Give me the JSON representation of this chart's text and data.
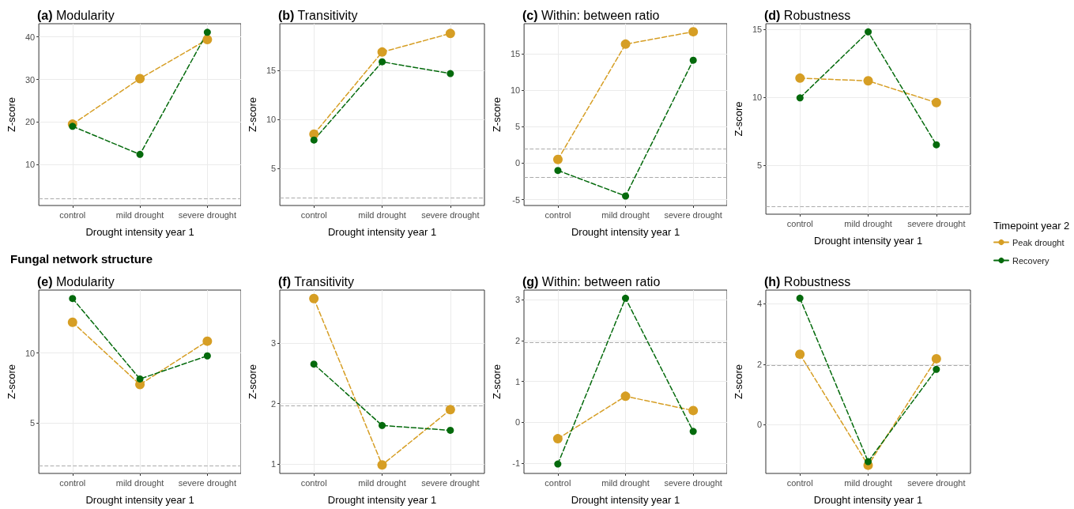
{
  "chart_data": [
    {
      "type": "line",
      "title": "(a) Modularity",
      "xlabel": "Drought intensity year 1",
      "ylabel": "Z-score",
      "categories": [
        "control",
        "mild drought",
        "severe drought"
      ],
      "ylim": [
        0.4,
        43.1
      ],
      "yticks": [
        10,
        20,
        30,
        40
      ],
      "grid": true,
      "marker": "circle",
      "line_style": "dashed",
      "ref_lines": [
        {
          "axis": "y",
          "value": 1.96,
          "color": "#aaaaaa",
          "line_style": "dashed"
        }
      ],
      "series": [
        {
          "color": "#d69e24",
          "values": [
            19.5,
            30.2,
            39.4
          ]
        },
        {
          "color": "#046a0c",
          "values": [
            19.0,
            12.4,
            41.1
          ]
        }
      ]
    },
    {
      "type": "line",
      "title": "(b) Transitivity",
      "xlabel": "Drought intensity year 1",
      "ylabel": "Z-score",
      "categories": [
        "control",
        "mild drought",
        "severe drought"
      ],
      "ylim": [
        1.2,
        19.8
      ],
      "yticks": [
        5,
        10,
        15
      ],
      "grid": true,
      "marker": "circle",
      "line_style": "dashed",
      "ref_lines": [
        {
          "axis": "y",
          "value": 1.96,
          "color": "#aaaaaa",
          "line_style": "dashed"
        }
      ],
      "series": [
        {
          "color": "#d69e24",
          "values": [
            8.5,
            16.9,
            18.8
          ]
        },
        {
          "color": "#046a0c",
          "values": [
            7.9,
            15.9,
            14.7
          ]
        }
      ]
    },
    {
      "type": "line",
      "title": "(c) Within: between ratio",
      "xlabel": "Drought intensity year 1",
      "ylabel": "Z-score",
      "categories": [
        "control",
        "mild drought",
        "severe drought"
      ],
      "ylim": [
        -5.8,
        19.1
      ],
      "yticks": [
        -5,
        0,
        5,
        10,
        15
      ],
      "grid": true,
      "marker": "circle",
      "line_style": "dashed",
      "ref_lines": [
        {
          "axis": "y",
          "value": 1.96,
          "color": "#aaaaaa",
          "line_style": "dashed"
        },
        {
          "axis": "y",
          "value": -1.96,
          "color": "#aaaaaa",
          "line_style": "dashed"
        }
      ],
      "series": [
        {
          "color": "#d69e24",
          "values": [
            0.5,
            16.3,
            18.0
          ]
        },
        {
          "color": "#046a0c",
          "values": [
            -1.0,
            -4.5,
            14.1
          ]
        }
      ]
    },
    {
      "type": "line",
      "title": "(d) Robustness",
      "xlabel": "Drought intensity year 1",
      "ylabel": "Z-score",
      "categories": [
        "control",
        "mild drought",
        "severe drought"
      ],
      "ylim": [
        1.4,
        15.4
      ],
      "yticks": [
        5,
        10,
        15
      ],
      "grid": true,
      "marker": "circle",
      "line_style": "dashed",
      "legend": "right",
      "legend_title": "Timepoint year 2",
      "ref_lines": [
        {
          "axis": "y",
          "value": 1.96,
          "color": "#aaaaaa",
          "line_style": "dashed"
        }
      ],
      "series": [
        {
          "name": "Peak drought",
          "color": "#d69e24",
          "values": [
            11.4,
            11.2,
            9.6
          ]
        },
        {
          "name": "Recovery",
          "color": "#046a0c",
          "values": [
            9.95,
            14.8,
            6.5
          ]
        }
      ]
    },
    {
      "type": "line",
      "subtitle": "Fungal network structure",
      "title": "(e) Modularity",
      "xlabel": "Drought intensity year 1",
      "ylabel": "Z-score",
      "categories": [
        "control",
        "mild drought",
        "severe drought"
      ],
      "ylim": [
        1.4,
        14.5
      ],
      "yticks": [
        5,
        10
      ],
      "grid": true,
      "marker": "circle",
      "line_style": "dashed",
      "ref_lines": [
        {
          "axis": "y",
          "value": 1.96,
          "color": "#aaaaaa",
          "line_style": "dashed"
        }
      ],
      "series": [
        {
          "color": "#d69e24",
          "values": [
            12.2,
            7.75,
            10.85
          ]
        },
        {
          "color": "#046a0c",
          "values": [
            13.9,
            8.15,
            9.8
          ]
        }
      ]
    },
    {
      "type": "line",
      "title": "(f) Transitivity",
      "xlabel": "Drought intensity year 1",
      "ylabel": "Z-score",
      "categories": [
        "control",
        "mild drought",
        "severe drought"
      ],
      "ylim": [
        0.85,
        3.87
      ],
      "yticks": [
        1,
        2,
        3
      ],
      "grid": true,
      "marker": "circle",
      "line_style": "dashed",
      "ref_lines": [
        {
          "axis": "y",
          "value": 1.96,
          "color": "#aaaaaa",
          "line_style": "dashed"
        }
      ],
      "series": [
        {
          "color": "#d69e24",
          "values": [
            3.73,
            0.99,
            1.9
          ]
        },
        {
          "color": "#046a0c",
          "values": [
            2.65,
            1.64,
            1.56
          ]
        }
      ]
    },
    {
      "type": "line",
      "title": "(g) Within: between ratio",
      "xlabel": "Drought intensity year 1",
      "ylabel": "Z-score",
      "categories": [
        "control",
        "mild drought",
        "severe drought"
      ],
      "ylim": [
        -1.25,
        3.24
      ],
      "yticks": [
        -1,
        0,
        1,
        2,
        3
      ],
      "grid": true,
      "marker": "circle",
      "line_style": "dashed",
      "ref_lines": [
        {
          "axis": "y",
          "value": 1.96,
          "color": "#aaaaaa",
          "line_style": "dashed"
        }
      ],
      "series": [
        {
          "color": "#d69e24",
          "values": [
            -0.4,
            0.64,
            0.29
          ]
        },
        {
          "color": "#046a0c",
          "values": [
            -1.02,
            3.04,
            -0.22
          ]
        }
      ]
    },
    {
      "type": "line",
      "title": "(h) Robustness",
      "xlabel": "Drought intensity year 1",
      "ylabel": "Z-score",
      "categories": [
        "control",
        "mild drought",
        "severe drought"
      ],
      "ylim": [
        -1.61,
        4.45
      ],
      "yticks": [
        0,
        2,
        4
      ],
      "grid": true,
      "marker": "circle",
      "line_style": "dashed",
      "ref_lines": [
        {
          "axis": "y",
          "value": 1.96,
          "color": "#aaaaaa",
          "line_style": "dashed"
        }
      ],
      "series": [
        {
          "color": "#d69e24",
          "values": [
            2.33,
            -1.34,
            2.18
          ]
        },
        {
          "color": "#046a0c",
          "values": [
            4.18,
            -1.22,
            1.83
          ]
        }
      ]
    }
  ]
}
